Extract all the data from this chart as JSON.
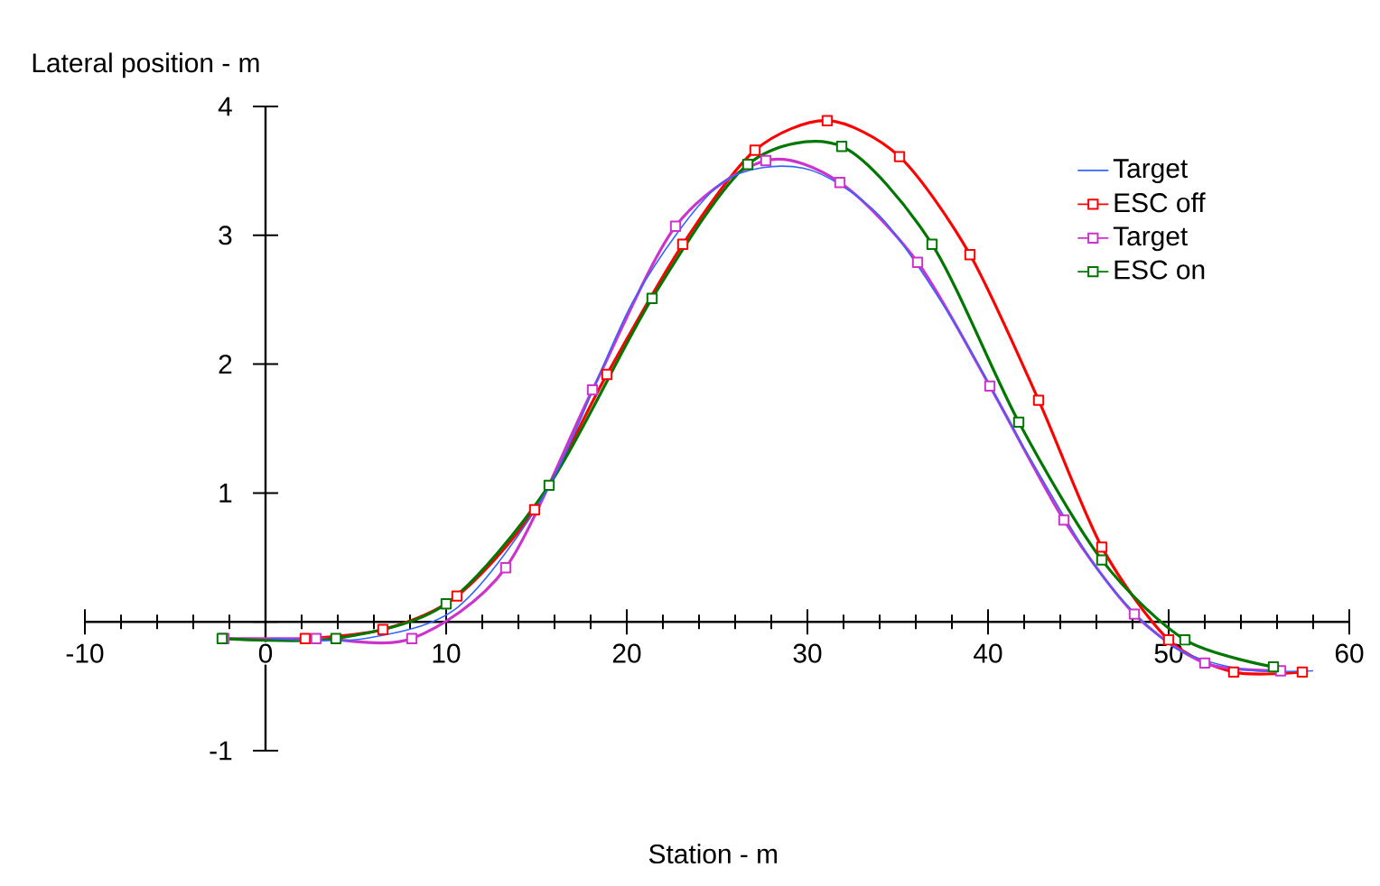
{
  "chart_data": {
    "type": "line",
    "xlabel": "Station - m",
    "ylabel": "Lateral position - m",
    "xlim": [
      -10,
      60
    ],
    "ylim": [
      -1,
      4
    ],
    "xticks": [
      -10,
      0,
      10,
      20,
      30,
      40,
      50,
      60
    ],
    "yticks": [
      -1,
      1,
      2,
      3,
      4
    ],
    "legend": "top right",
    "grid": false,
    "series": [
      {
        "name": "Target",
        "color": "#3366ff",
        "marker": "none",
        "x": [
          0.3,
          5.5,
          10.7,
          15.7,
          20.4,
          25.2,
          29.8,
          34.0,
          38.1,
          42.2,
          46.2,
          50.1,
          54.1,
          58.0
        ],
        "values": [
          -0.13,
          -0.13,
          0.12,
          1.05,
          2.5,
          3.4,
          3.52,
          3.15,
          2.33,
          1.3,
          0.38,
          -0.18,
          -0.37,
          -0.38
        ]
      },
      {
        "name": "ESC off",
        "color": "#ff0000",
        "marker": "square",
        "x": [
          2.2,
          6.5,
          10.6,
          14.9,
          18.9,
          23.1,
          27.1,
          31.1,
          35.1,
          39.0,
          42.8,
          46.3,
          50.0,
          53.6,
          57.4
        ],
        "values": [
          -0.13,
          -0.06,
          0.2,
          0.87,
          1.92,
          2.93,
          3.66,
          3.89,
          3.61,
          2.85,
          1.72,
          0.58,
          -0.14,
          -0.39,
          -0.39
        ]
      },
      {
        "name": "Target",
        "color": "#cc33cc",
        "marker": "square",
        "x": [
          -2.3,
          2.8,
          8.1,
          13.3,
          18.1,
          22.7,
          27.7,
          31.8,
          36.1,
          40.1,
          44.2,
          48.1,
          52.0,
          56.2
        ],
        "values": [
          -0.13,
          -0.13,
          -0.13,
          0.42,
          1.8,
          3.07,
          3.58,
          3.41,
          2.79,
          1.83,
          0.79,
          0.06,
          -0.32,
          -0.38
        ]
      },
      {
        "name": "ESC on",
        "color": "#007700",
        "marker": "square",
        "x": [
          -2.4,
          3.9,
          10.0,
          15.7,
          21.4,
          26.7,
          31.9,
          36.9,
          41.7,
          46.3,
          50.9,
          55.8
        ],
        "values": [
          -0.13,
          -0.13,
          0.14,
          1.06,
          2.51,
          3.55,
          3.69,
          2.93,
          1.55,
          0.48,
          -0.14,
          -0.35
        ]
      }
    ]
  }
}
